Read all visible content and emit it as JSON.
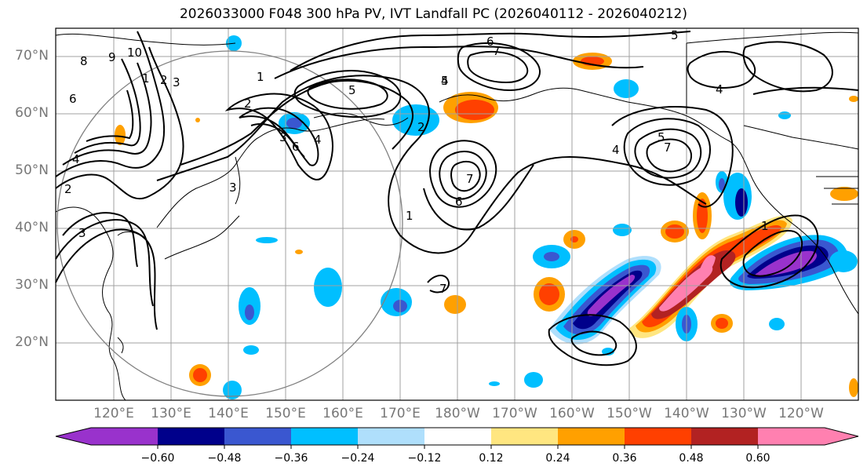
{
  "title": "2026033000 F048 300 hPa PV, IVT Landfall PC (2026040112 - 2026040212)",
  "map": {
    "lat_labels": [
      "70°N",
      "60°N",
      "50°N",
      "40°N",
      "30°N",
      "20°N"
    ],
    "lon_labels": [
      "120°E",
      "130°E",
      "140°E",
      "150°E",
      "160°E",
      "170°E",
      "180°W",
      "170°W",
      "160°W",
      "150°W",
      "140°W",
      "130°W",
      "120°W"
    ],
    "pv_contour_labels": [
      "8",
      "9",
      "10",
      "6",
      "1",
      "2",
      "3",
      "4",
      "5",
      "6",
      "7",
      "1",
      "2",
      "3",
      "4",
      "5",
      "6",
      "5",
      "4",
      "2",
      "1",
      "7",
      "6",
      "5",
      "4",
      "3",
      "2",
      "7",
      "4",
      "3",
      "1",
      "7"
    ]
  },
  "colorbar": {
    "ticks": [
      "−0.60",
      "−0.48",
      "−0.36",
      "−0.24",
      "−0.12",
      "0.12",
      "0.24",
      "0.36",
      "0.48",
      "0.60"
    ],
    "colors": [
      "#9932cc",
      "#00008b",
      "#3a57d0",
      "#00bfff",
      "#afdffc",
      "#ffffff",
      "#ffe680",
      "#ffa000",
      "#ff4000",
      "#b22222",
      "#ff80b0"
    ]
  }
}
